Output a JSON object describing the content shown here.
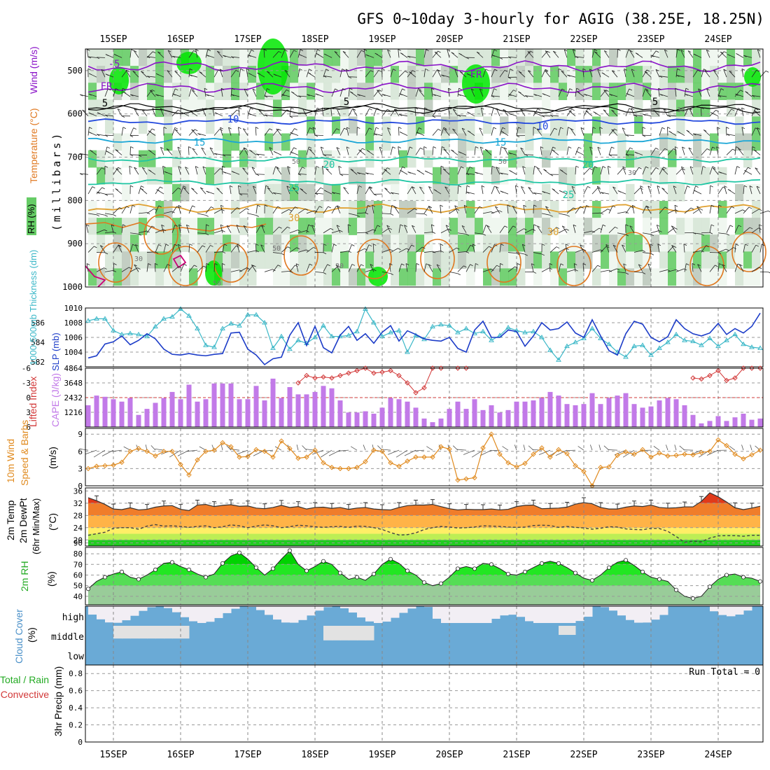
{
  "title": "GFS 0~10day 3-hourly for AGIG (38.25E, 18.25N)",
  "colors": {
    "rh_light": "#eef6ee",
    "rh_mid": "#d6e6d6",
    "rh_gray": "#bcc9bc",
    "rh_green": "#66cc66",
    "rh_bright": "#00e600",
    "temp_purple": "#8a12c8",
    "temp_blue": "#2248dd",
    "temp_cyan": "#1aa6d6",
    "temp_teal": "#1fc6a4",
    "temp_orange": "#e0a030",
    "temp_dark_orange": "#e07820",
    "temp_magenta": "#cc0077",
    "slp_line": "#1c3cc8",
    "thickness_line": "#3cb8c8",
    "lifted_index": "#d23838",
    "cape_bar": "#c27ae8",
    "wind_speed": "#e08a1e",
    "rh2m_fill": "#22cc22",
    "cloud_blue": "#6aaad6",
    "cloud_gray": "#e2e2e2"
  },
  "dates": [
    "15SEP",
    "16SEP",
    "17SEP",
    "18SEP",
    "19SEP",
    "20SEP",
    "21SEP",
    "22SEP",
    "23SEP",
    "24SEP"
  ],
  "panels": {
    "upper_air": {
      "y_label": "(millibars)",
      "legend_wind": "Wind (m/s)",
      "legend_temp": "Temperature (°C)",
      "legend_rh": "RH (%)",
      "pressure_ticks": [
        "500",
        "600",
        "700",
        "800",
        "900",
        "1000"
      ],
      "contour_labels": [
        "-5",
        "FR",
        "5",
        "10",
        "15",
        "20",
        "25",
        "30"
      ],
      "rh_labels": [
        "30",
        "50"
      ]
    },
    "slp": {
      "left_label": "1000-500mb Thickness (dm)",
      "right_label": "SLP (mb)",
      "thickness_ticks": [
        "586",
        "584",
        "582"
      ],
      "slp_ticks": [
        "1010",
        "1008",
        "1006",
        "1004"
      ]
    },
    "cape": {
      "left_label": "Lifted Index",
      "right_label": "CAPE (J/kg)",
      "li_ticks": [
        "-6",
        "-3",
        "0",
        "3",
        "6"
      ],
      "cape_ticks": [
        "4864",
        "3648",
        "2432",
        "1216"
      ]
    },
    "wind10m": {
      "label": "10m Wind",
      "label2": "Speed & Barbs",
      "unit": "(m/s)",
      "ticks": [
        "9",
        "6",
        "3",
        "0"
      ]
    },
    "temp2m": {
      "label": "2m Temp",
      "label2": "2m DewPt",
      "label3": "(6hr Min/Max)",
      "unit": "(°C)",
      "ticks": [
        "36",
        "32",
        "28",
        "24",
        "20",
        "90"
      ]
    },
    "rh2m": {
      "label": "2m RH",
      "unit": "(%)",
      "ticks": [
        "80",
        "70",
        "60",
        "50",
        "40"
      ]
    },
    "cloud": {
      "label": "Cloud Cover",
      "unit": "(%)",
      "levels": [
        "high",
        "middle",
        "low"
      ]
    },
    "precip": {
      "label": "3hr Precip (mm)",
      "label2": "Total / Rain",
      "label3": "Convective",
      "ticks": [
        "0.8",
        "0.6",
        "0.4",
        "0.2",
        "0"
      ],
      "run_total": "Run Total = 0"
    }
  },
  "chart_data": {
    "type": "meteogram",
    "time_step_hours": 3,
    "start": "14SEP 15Z",
    "steps": 81,
    "slp_mb": [
      1003.2,
      1003.5,
      1005.1,
      1005.4,
      1006.2,
      1005.0,
      1005.6,
      1006.5,
      1005.8,
      1004.4,
      1003.7,
      1003.6,
      1003.8,
      1003.6,
      1003.5,
      1003.7,
      1003.8,
      1006.6,
      1006.7,
      1004.4,
      1003.6,
      1002.3,
      1003.1,
      1003.3,
      1006.3,
      1008.0,
      1004.9,
      1007.5,
      1004.6,
      1003.9,
      1006.3,
      1007.5,
      1005.6,
      1006.5,
      1005.2,
      1006.7,
      1007.6,
      1005.5,
      1006.9,
      1006.4,
      1005.8,
      1005.6,
      1005.5,
      1006.0,
      1004.5,
      1004.0,
      1007.0,
      1008.2,
      1006.0,
      1006.0,
      1007.0,
      1006.8,
      1004.8,
      1006.2,
      1008.0,
      1007.0,
      1007.2,
      1008.1,
      1006.6,
      1006.0,
      1008.4,
      1006.2,
      1004.2,
      1003.6,
      1006.5,
      1008.2,
      1007.8,
      1006.0,
      1005.4,
      1006.1,
      1008.4,
      1007.2,
      1006.5,
      1006.2,
      1006.6,
      1007.9,
      1006.4,
      1007.2,
      1006.6,
      1007.5,
      1009.3
    ],
    "thickness_dm": [
      586.2,
      586.4,
      586.4,
      585.2,
      584.8,
      584.9,
      584.8,
      584.6,
      585.6,
      586.4,
      586.6,
      587.4,
      586.7,
      585.4,
      583.7,
      583.5,
      585.4,
      585.9,
      585.7,
      586.8,
      586.8,
      586.0,
      583.4,
      584.6,
      583.3,
      584.2,
      583.9,
      584.5,
      585.7,
      584.6,
      584.6,
      584.7,
      585.1,
      587.4,
      586.0,
      584.6,
      585.0,
      585.2,
      583.0,
      584.7,
      584.3,
      585.6,
      585.8,
      585.7,
      585.0,
      585.4,
      584.9,
      585.1,
      584.2,
      584.7,
      585.5,
      585.2,
      585.0,
      585.1,
      584.5,
      583.2,
      582.2,
      583.6,
      584.0,
      584.4,
      585.4,
      584.4,
      583.8,
      583.0,
      582.5,
      583.6,
      583.7,
      582.7,
      583.4,
      584.0,
      584.8,
      584.2,
      584.1,
      583.7,
      584.4,
      583.6,
      584.2,
      584.8,
      583.8,
      583.5,
      583.4
    ],
    "cape_jkg": [
      1800,
      2600,
      2500,
      2300,
      2100,
      2400,
      1000,
      1500,
      2000,
      2400,
      2900,
      2300,
      3500,
      2100,
      2300,
      3600,
      3600,
      3600,
      2300,
      2300,
      3400,
      2200,
      4000,
      2400,
      3300,
      2700,
      2700,
      2900,
      3400,
      3200,
      2200,
      1200,
      1200,
      1300,
      1100,
      1600,
      2400,
      2300,
      2100,
      1600,
      700,
      400,
      700,
      1500,
      2100,
      1500,
      2300,
      1400,
      1800,
      1200,
      1400,
      2100,
      2100,
      2200,
      2400,
      2900,
      2600,
      1900,
      1800,
      1900,
      2800,
      1900,
      2400,
      2600,
      2800,
      1900,
      1600,
      1700,
      2200,
      2400,
      2300,
      1800,
      1000,
      300,
      500,
      900,
      500,
      800,
      1100,
      600,
      700
    ],
    "lifted_index": [
      null,
      null,
      null,
      null,
      null,
      null,
      null,
      null,
      null,
      null,
      null,
      null,
      null,
      null,
      null,
      null,
      null,
      null,
      null,
      null,
      null,
      null,
      null,
      null,
      null,
      -3.0,
      -4.5,
      -4.0,
      -4.2,
      -4.0,
      -4.5,
      -5.0,
      -5.5,
      -6.0,
      -5.0,
      -5.2,
      -5.5,
      -4.5,
      -3.0,
      -1.0,
      -2.0,
      -6.0,
      -6.0,
      null,
      -6.0,
      -6.0,
      null,
      null,
      null,
      null,
      null,
      null,
      null,
      null,
      null,
      null,
      null,
      null,
      null,
      null,
      null,
      null,
      null,
      null,
      null,
      null,
      null,
      null,
      null,
      null,
      null,
      null,
      -4.0,
      -3.8,
      -4.5,
      -5.5,
      -3.5,
      -4.0,
      -6.0,
      -6.0,
      -6.0
    ],
    "wind_speed_ms": [
      3.0,
      3.4,
      3.5,
      3.6,
      4.1,
      6.0,
      6.5,
      6.0,
      5.2,
      6.0,
      6.0,
      3.7,
      1.9,
      4.5,
      6.0,
      6.2,
      7.5,
      6.8,
      5.0,
      5.1,
      6.3,
      6.0,
      5.0,
      7.8,
      6.5,
      4.8,
      5.0,
      6.2,
      4.0,
      3.2,
      3.0,
      3.0,
      3.2,
      4.2,
      6.2,
      6.0,
      4.0,
      3.4,
      4.3,
      5.0,
      5.0,
      5.0,
      6.8,
      6.4,
      1.0,
      1.2,
      1.4,
      6.6,
      9.0,
      5.5,
      4.0,
      3.3,
      3.9,
      5.5,
      6.6,
      5.0,
      6.3,
      5.6,
      3.5,
      2.5,
      0.0,
      3.2,
      3.3,
      5.3,
      5.9,
      5.5,
      6.3,
      5.0,
      5.7,
      5.2,
      5.3,
      5.5,
      5.4,
      5.8,
      6.0,
      8.0,
      7.0,
      5.5,
      4.7,
      5.4,
      6.2
    ],
    "temp_c": [
      33.8,
      32.8,
      31.6,
      30.1,
      29.9,
      30.5,
      29.8,
      30.0,
      30.7,
      31.1,
      31.2,
      30.0,
      29.6,
      31.4,
      31.6,
      30.9,
      31.3,
      31.5,
      31.0,
      31.1,
      30.4,
      30.2,
      30.6,
      31.3,
      30.6,
      30.9,
      30.1,
      30.6,
      30.7,
      30.3,
      30.6,
      30.0,
      30.4,
      30.6,
      30.1,
      29.9,
      29.8,
      30.6,
      31.2,
      31.4,
      31.4,
      31.6,
      30.9,
      30.2,
      29.8,
      30.0,
      29.9,
      29.9,
      30.1,
      29.8,
      30.0,
      30.9,
      31.3,
      31.4,
      30.2,
      30.3,
      30.4,
      30.7,
      31.7,
      32.2,
      31.8,
      30.6,
      30.1,
      30.1,
      30.7,
      31.1,
      30.9,
      31.4,
      30.6,
      30.4,
      30.5,
      30.8,
      30.8,
      32.6,
      35.4,
      34.1,
      32.4,
      30.5,
      29.9,
      30.4,
      31.0
    ],
    "dewpt_c": [
      21.5,
      22.0,
      22.5,
      23.8,
      24.0,
      24.0,
      23.5,
      24.5,
      25.0,
      24.5,
      24.6,
      24.4,
      24.1,
      24.4,
      24.6,
      24.0,
      24.3,
      24.9,
      24.6,
      24.0,
      24.5,
      24.9,
      24.6,
      24.0,
      24.3,
      24.8,
      24.6,
      24.3,
      24.1,
      24.3,
      24.4,
      24.1,
      24.5,
      24.4,
      24.0,
      23.4,
      22.4,
      21.6,
      21.7,
      22.3,
      23.4,
      24.0,
      24.4,
      24.2,
      23.9,
      24.0,
      24.2,
      24.6,
      24.5,
      24.4,
      24.2,
      24.1,
      24.2,
      24.7,
      24.8,
      24.7,
      24.1,
      24.4,
      24.1,
      23.9,
      23.5,
      23.8,
      24.3,
      24.2,
      23.6,
      23.4,
      23.3,
      23.8,
      23.7,
      22.8,
      21.1,
      19.2,
      19.6,
      19.4,
      20.6,
      21.3,
      21.4,
      21.4,
      21.2,
      21.5,
      21.5
    ],
    "rh2m_pct": [
      47,
      54,
      58,
      61,
      63,
      58,
      56,
      60,
      65,
      71,
      72,
      68,
      65,
      61,
      58,
      61,
      71,
      78,
      81,
      75,
      67,
      60,
      66,
      75,
      83,
      70,
      64,
      68,
      73,
      70,
      62,
      56,
      58,
      55,
      61,
      70,
      75,
      71,
      64,
      60,
      53,
      50,
      52,
      58,
      66,
      68,
      66,
      71,
      70,
      66,
      61,
      60,
      63,
      67,
      71,
      73,
      71,
      67,
      62,
      57,
      55,
      60,
      67,
      72,
      74,
      69,
      63,
      58,
      56,
      54,
      46,
      40,
      38,
      40,
      49,
      56,
      60,
      61,
      58,
      57,
      54
    ],
    "precip_mm": 0,
    "precip_ylim": [
      0,
      0.9
    ],
    "slp_ylim": [
      1002,
      1010
    ],
    "thickness_ylim": [
      581.5,
      587.5
    ],
    "cape_ylim": [
      0,
      4864
    ],
    "li_ylim": [
      6,
      -6
    ],
    "wind_ylim": [
      0,
      10
    ],
    "temp_ylim": [
      18,
      37
    ],
    "rh_ylim": [
      32,
      86
    ],
    "pressure_ylim": [
      450,
      1000
    ]
  }
}
